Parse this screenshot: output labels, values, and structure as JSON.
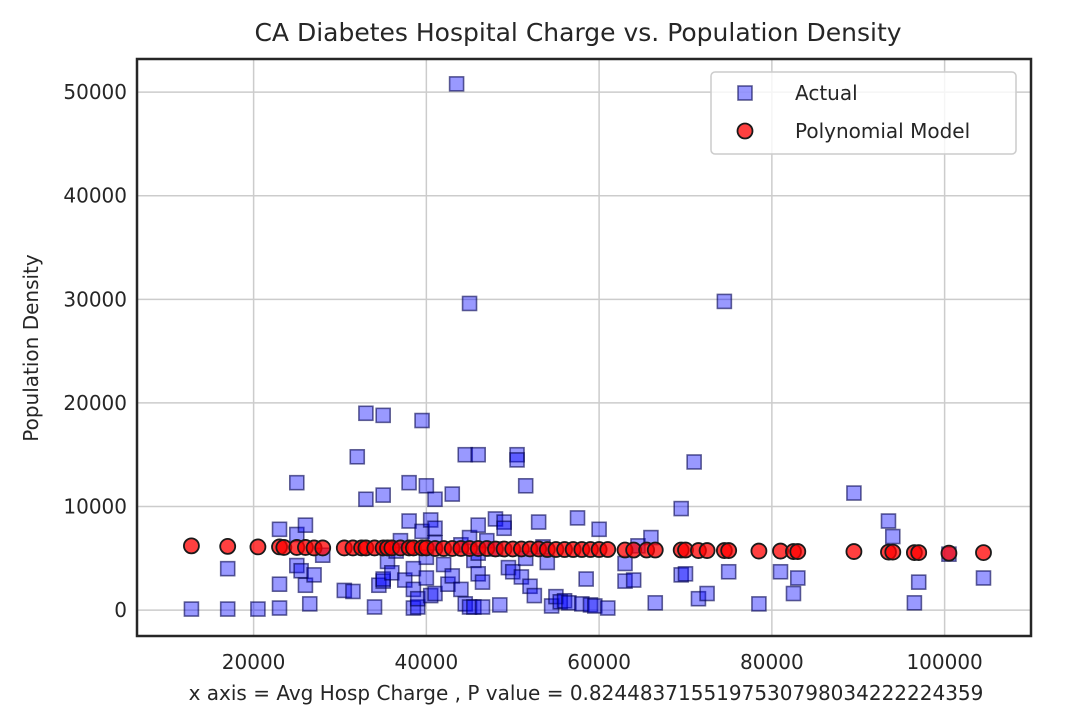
{
  "chart_data": {
    "type": "scatter",
    "title": "CA Diabetes Hospital Charge vs. Population Density",
    "xlabel": "x axis = Avg Hosp Charge , P value = 0.8244837155197530798034222224359",
    "ylabel": "Population Density",
    "xlim": [
      6500,
      110000
    ],
    "ylim": [
      -2500,
      53200
    ],
    "xticks": [
      20000,
      40000,
      60000,
      80000,
      100000
    ],
    "yticks": [
      0,
      10000,
      20000,
      30000,
      40000,
      50000
    ],
    "grid": true,
    "legend_position": "top-right",
    "series": [
      {
        "name": "Actual",
        "marker": "square",
        "color": "#0000ff",
        "points": [
          [
            12800,
            100
          ],
          [
            17000,
            100
          ],
          [
            20500,
            100
          ],
          [
            23000,
            200
          ],
          [
            17000,
            4000
          ],
          [
            23000,
            2500
          ],
          [
            23000,
            7800
          ],
          [
            25000,
            12300
          ],
          [
            25000,
            7300
          ],
          [
            25000,
            4300
          ],
          [
            25500,
            3800
          ],
          [
            26000,
            8200
          ],
          [
            26000,
            2400
          ],
          [
            26500,
            600
          ],
          [
            27000,
            3400
          ],
          [
            28000,
            5300
          ],
          [
            30500,
            1900
          ],
          [
            31500,
            1800
          ],
          [
            32000,
            14800
          ],
          [
            33000,
            19000
          ],
          [
            33000,
            10700
          ],
          [
            34000,
            300
          ],
          [
            34500,
            2400
          ],
          [
            35000,
            2800
          ],
          [
            35000,
            3000
          ],
          [
            35000,
            11100
          ],
          [
            35000,
            18800
          ],
          [
            35500,
            4700
          ],
          [
            36000,
            3600
          ],
          [
            36500,
            5700
          ],
          [
            37000,
            6700
          ],
          [
            37500,
            2900
          ],
          [
            38000,
            12300
          ],
          [
            38000,
            8600
          ],
          [
            38500,
            4000
          ],
          [
            38500,
            2000
          ],
          [
            38500,
            200
          ],
          [
            39000,
            300
          ],
          [
            39000,
            1100
          ],
          [
            39500,
            18300
          ],
          [
            39500,
            7600
          ],
          [
            40000,
            12000
          ],
          [
            40000,
            5100
          ],
          [
            40000,
            3100
          ],
          [
            40500,
            1400
          ],
          [
            40500,
            8700
          ],
          [
            41000,
            10700
          ],
          [
            41000,
            7900
          ],
          [
            41000,
            6500
          ],
          [
            41000,
            1600
          ],
          [
            42000,
            4400
          ],
          [
            42500,
            2500
          ],
          [
            43000,
            3300
          ],
          [
            43000,
            11200
          ],
          [
            43500,
            50800
          ],
          [
            44000,
            6300
          ],
          [
            44000,
            2000
          ],
          [
            44500,
            600
          ],
          [
            44500,
            15000
          ],
          [
            45000,
            300
          ],
          [
            45000,
            29600
          ],
          [
            45000,
            7000
          ],
          [
            45500,
            4800
          ],
          [
            45500,
            300
          ],
          [
            46000,
            8200
          ],
          [
            46000,
            5500
          ],
          [
            46000,
            15000
          ],
          [
            46000,
            3500
          ],
          [
            46500,
            300
          ],
          [
            46500,
            2700
          ],
          [
            47000,
            6700
          ],
          [
            48000,
            8800
          ],
          [
            48000,
            5900
          ],
          [
            48500,
            500
          ],
          [
            49000,
            8500
          ],
          [
            49000,
            7900
          ],
          [
            49500,
            4100
          ],
          [
            50000,
            3700
          ],
          [
            50500,
            15000
          ],
          [
            50500,
            14500
          ],
          [
            51000,
            3200
          ],
          [
            51500,
            12000
          ],
          [
            51500,
            5000
          ],
          [
            52000,
            2300
          ],
          [
            52500,
            1400
          ],
          [
            53000,
            8500
          ],
          [
            53500,
            6100
          ],
          [
            54000,
            4600
          ],
          [
            54500,
            400
          ],
          [
            55000,
            1300
          ],
          [
            55500,
            800
          ],
          [
            56000,
            900
          ],
          [
            56500,
            700
          ],
          [
            57500,
            8900
          ],
          [
            58000,
            600
          ],
          [
            58500,
            3000
          ],
          [
            59000,
            500
          ],
          [
            59500,
            400
          ],
          [
            60000,
            7800
          ],
          [
            61000,
            200
          ],
          [
            63000,
            4500
          ],
          [
            63000,
            2800
          ],
          [
            64000,
            2900
          ],
          [
            64500,
            6200
          ],
          [
            66000,
            7000
          ],
          [
            66500,
            700
          ],
          [
            69500,
            3400
          ],
          [
            69500,
            9800
          ],
          [
            70000,
            3500
          ],
          [
            71000,
            14300
          ],
          [
            71500,
            1100
          ],
          [
            72500,
            1600
          ],
          [
            74500,
            29800
          ],
          [
            75000,
            3700
          ],
          [
            78500,
            600
          ],
          [
            81000,
            3700
          ],
          [
            82500,
            1600
          ],
          [
            83000,
            3100
          ],
          [
            89500,
            11300
          ],
          [
            93500,
            8600
          ],
          [
            94000,
            7100
          ],
          [
            96500,
            700
          ],
          [
            97000,
            2700
          ],
          [
            100500,
            5400
          ],
          [
            104500,
            3100
          ]
        ]
      },
      {
        "name": "Polynomial Model",
        "marker": "circle",
        "color": "#ff0000",
        "points": [
          [
            12800,
            6200
          ],
          [
            17000,
            6150
          ],
          [
            20500,
            6100
          ],
          [
            23000,
            6100
          ],
          [
            23500,
            6050
          ],
          [
            25000,
            6050
          ],
          [
            26000,
            6050
          ],
          [
            27000,
            6000
          ],
          [
            28000,
            6000
          ],
          [
            30500,
            6000
          ],
          [
            31500,
            6000
          ],
          [
            32500,
            6000
          ],
          [
            33000,
            6000
          ],
          [
            34000,
            6000
          ],
          [
            35000,
            6000
          ],
          [
            35500,
            6000
          ],
          [
            36000,
            6000
          ],
          [
            37000,
            6000
          ],
          [
            38000,
            6000
          ],
          [
            38500,
            6000
          ],
          [
            39500,
            6000
          ],
          [
            40000,
            6000
          ],
          [
            41000,
            5950
          ],
          [
            42000,
            5950
          ],
          [
            43000,
            5950
          ],
          [
            44000,
            5950
          ],
          [
            45000,
            5950
          ],
          [
            46000,
            5950
          ],
          [
            47000,
            5950
          ],
          [
            48000,
            5900
          ],
          [
            49000,
            5900
          ],
          [
            50000,
            5900
          ],
          [
            51000,
            5900
          ],
          [
            52000,
            5900
          ],
          [
            53000,
            5900
          ],
          [
            54000,
            5850
          ],
          [
            55000,
            5850
          ],
          [
            56000,
            5850
          ],
          [
            57000,
            5850
          ],
          [
            58000,
            5850
          ],
          [
            59000,
            5850
          ],
          [
            60000,
            5850
          ],
          [
            61000,
            5850
          ],
          [
            63000,
            5800
          ],
          [
            64000,
            5800
          ],
          [
            65500,
            5800
          ],
          [
            66500,
            5800
          ],
          [
            69500,
            5800
          ],
          [
            70000,
            5800
          ],
          [
            71500,
            5750
          ],
          [
            72500,
            5750
          ],
          [
            74500,
            5750
          ],
          [
            75000,
            5750
          ],
          [
            78500,
            5700
          ],
          [
            81000,
            5700
          ],
          [
            82500,
            5650
          ],
          [
            83000,
            5650
          ],
          [
            89500,
            5650
          ],
          [
            93500,
            5600
          ],
          [
            94000,
            5600
          ],
          [
            96500,
            5550
          ],
          [
            97000,
            5550
          ],
          [
            100500,
            5500
          ],
          [
            104500,
            5550
          ]
        ]
      }
    ]
  }
}
